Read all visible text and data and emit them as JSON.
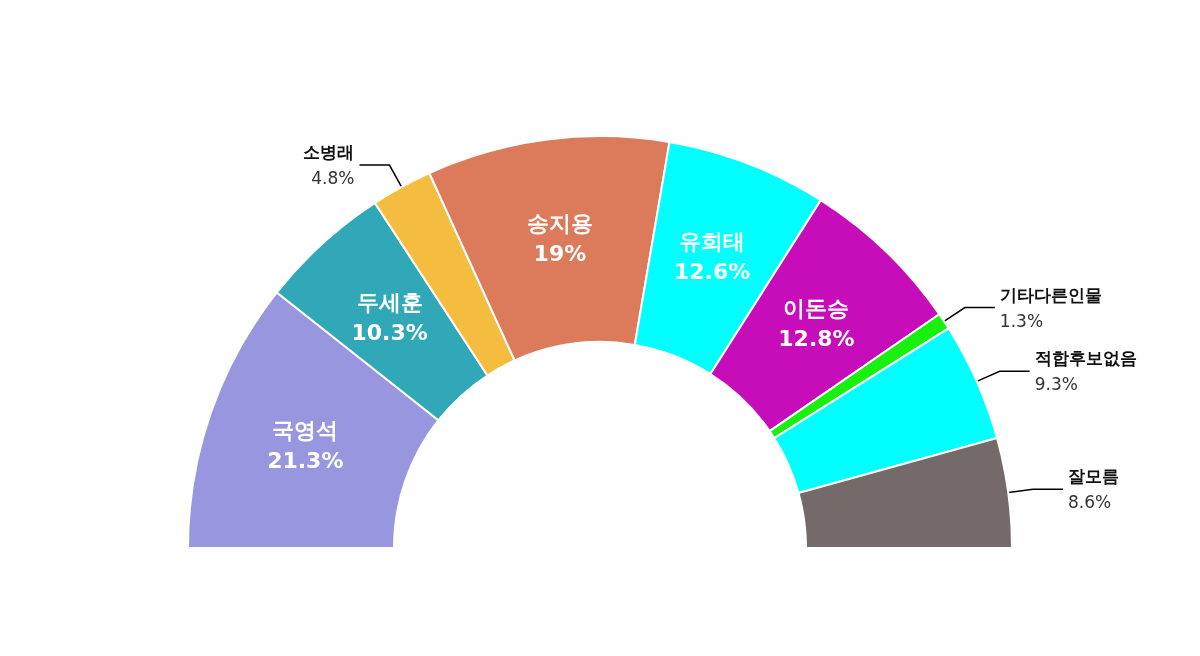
{
  "chart_data": {
    "type": "donut",
    "categories": [
      "국영석",
      "두세훈",
      "소병래",
      "송지용",
      "유희태",
      "이돈승",
      "기타다른인물",
      "적합후보없음",
      "잘모름"
    ],
    "values": [
      21.3,
      10.3,
      4.8,
      19,
      12.6,
      12.8,
      1.3,
      9.3,
      8.6
    ],
    "colors": [
      "#9896de",
      "#31a8b8",
      "#f5bd40",
      "#dc7a5c",
      "#00ffff",
      "#c70cb9",
      "#18f010",
      "#00ffff",
      "#736a69"
    ],
    "value_labels": [
      "21.3%",
      "10.3%",
      "4.8%",
      "19%",
      "12.6%",
      "12.8%",
      "1.3%",
      "9.3%",
      "8.6%"
    ]
  }
}
